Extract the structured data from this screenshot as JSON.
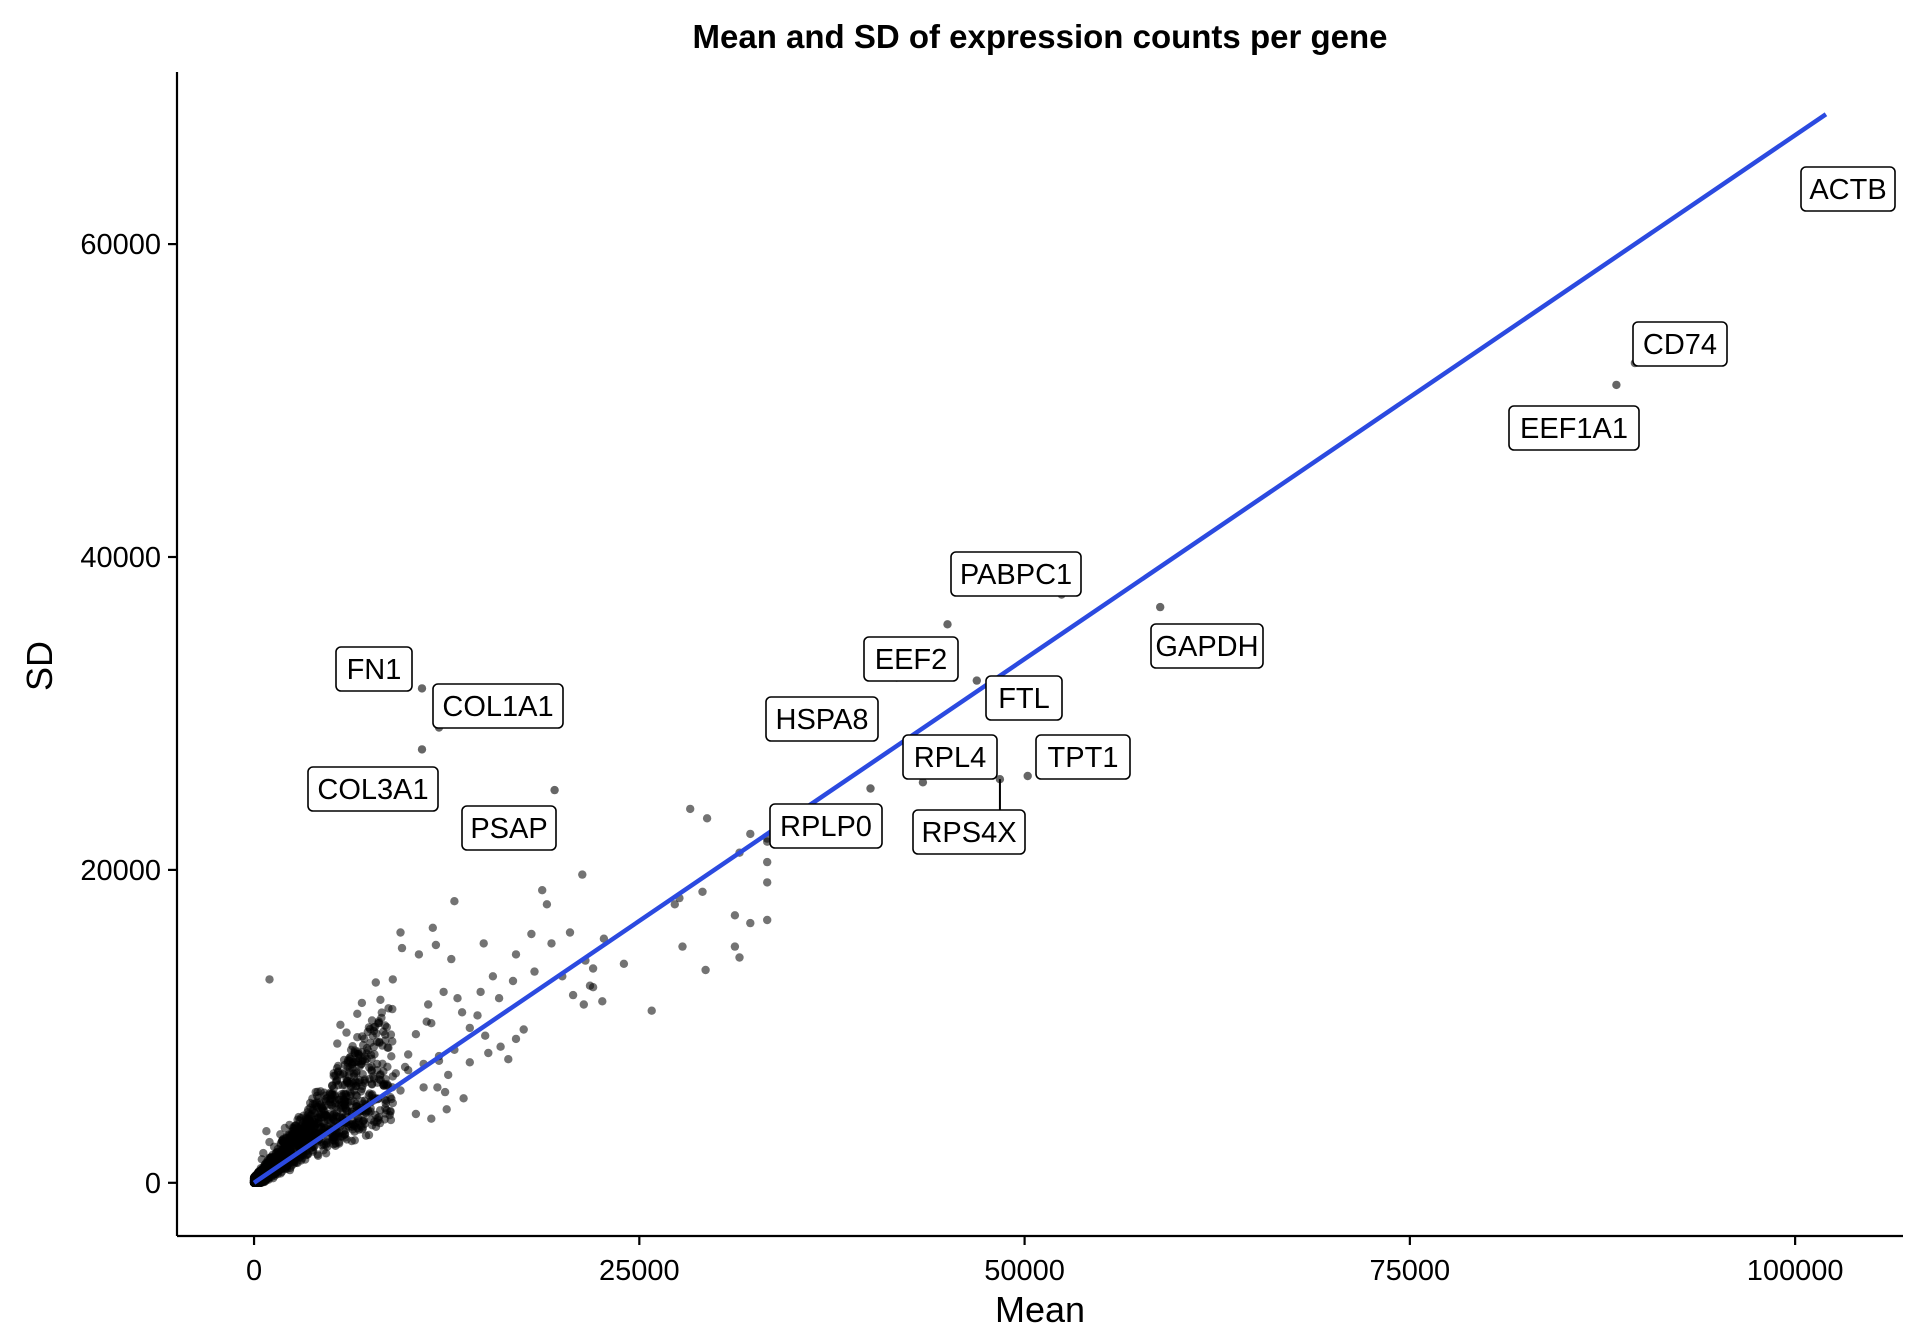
{
  "chart_data": {
    "type": "scatter",
    "title": "Mean and SD of expression counts per gene",
    "xlabel": "Mean",
    "ylabel": "SD",
    "xlim": [
      -5000,
      107000
    ],
    "ylim": [
      -3400,
      71000
    ],
    "x_ticks": [
      "0",
      "25000",
      "50000",
      "75000",
      "100000"
    ],
    "y_ticks": [
      "0",
      "20000",
      "40000",
      "60000"
    ],
    "grid": false,
    "colors": {
      "points": "#000000",
      "trend": "#2b4ae0",
      "label_border": "#000000"
    },
    "trend_line": {
      "x": [
        0,
        102000
      ],
      "y": [
        0,
        68300
      ]
    },
    "labeled_genes": [
      {
        "label": "ACTB",
        "x": 102100,
        "y": 62500
      },
      {
        "label": "CD74",
        "x": 89600,
        "y": 52400
      },
      {
        "label": "EEF1A1",
        "x": 88400,
        "y": 51000
      },
      {
        "label": "PABPC1",
        "x": 52400,
        "y": 37600
      },
      {
        "label": "GAPDH",
        "x": 58800,
        "y": 36800
      },
      {
        "label": "EEF2",
        "x": 41700,
        "y": 32300
      },
      {
        "label": "HSPA8",
        "x": 45000,
        "y": 35700
      },
      {
        "label": "FTL",
        "x": 46900,
        "y": 32100
      },
      {
        "label": "FN1",
        "x": 10900,
        "y": 31600
      },
      {
        "label": "COL1A1",
        "x": 12000,
        "y": 29100
      },
      {
        "label": "COL3A1",
        "x": 10900,
        "y": 27700
      },
      {
        "label": "PSAP",
        "x": 19500,
        "y": 25100
      },
      {
        "label": "RPL4",
        "x": 43400,
        "y": 25600
      },
      {
        "label": "TPT1",
        "x": 50200,
        "y": 26000
      },
      {
        "label": "RPS4X",
        "x": 48400,
        "y": 25800
      },
      {
        "label": "RPLP0",
        "x": 40000,
        "y": 25200
      }
    ],
    "other_points": {
      "x": [
        1000,
        33300,
        33300,
        33300,
        33300,
        28300,
        29400,
        31500,
        31200,
        32200,
        27300,
        27600,
        29100,
        27800,
        29300,
        31200,
        31500,
        32200,
        33300,
        25800,
        24000,
        22000,
        19300,
        21300,
        22700,
        22600,
        20000,
        20700,
        21400,
        22000,
        18700,
        19000,
        20500,
        21500,
        21800,
        18200,
        18000,
        17000,
        16800,
        15900,
        15500,
        14900,
        14700,
        13000,
        12800,
        11800,
        11600,
        12300,
        11300,
        11200,
        10700,
        9600,
        9500,
        9000,
        8200,
        7900,
        7700,
        7000,
        6700,
        6300,
        6000,
        5600,
        5400,
        13200,
        13500,
        14000,
        14500,
        15000,
        16000,
        17500,
        17000,
        16500,
        15200,
        14000,
        13000,
        12000,
        11000,
        10000,
        9000,
        8000,
        7000,
        6000,
        10500,
        11500,
        12600,
        12400,
        13600,
        11900,
        9800,
        9200,
        8700,
        7500,
        6500,
        5800,
        5200,
        4800,
        4500,
        4200,
        3900,
        3600,
        3300,
        3000,
        2700,
        2400,
        2100,
        1800,
        1500,
        1200,
        900,
        600,
        300,
        8500,
        9500,
        10500,
        11500,
        12500,
        7800,
        6800,
        5900,
        5100,
        4400,
        3800,
        3200,
        2600,
        2000,
        1400,
        800,
        400,
        7200,
        6300,
        5500,
        4700,
        4000,
        3400,
        2800,
        2200,
        1600,
        1100,
        700,
        350,
        150,
        12000,
        10000,
        8000,
        6000,
        4000,
        2000,
        3000,
        5000,
        7000,
        9000,
        11000,
        2500,
        3500,
        4500,
        5500,
        6500,
        1000,
        1700,
        2300,
        2900,
        600,
        1300,
        1900,
        500,
        800,
        250,
        450,
        700,
        950,
        1250,
        1550,
        1850,
        2150,
        2450,
        2750,
        3050,
        3350,
        3650,
        3950,
        4250,
        4550,
        4850,
        5150,
        5450,
        5750,
        6050,
        6350,
        6650,
        6950,
        7250,
        7550,
        100,
        200,
        300,
        400,
        500,
        600,
        700,
        800,
        900,
        1000
      ],
      "y": [
        13000,
        19200,
        20500,
        21800,
        16800,
        23900,
        23300,
        21100,
        17100,
        16600,
        17800,
        18200,
        18600,
        15100,
        13600,
        15100,
        14400,
        22300,
        22000,
        11000,
        14000,
        12500,
        15300,
        19700,
        15600,
        11600,
        13200,
        12000,
        11400,
        13700,
        18700,
        17800,
        16000,
        14200,
        12600,
        13500,
        15900,
        14600,
        12900,
        11800,
        13200,
        15300,
        12200,
        18000,
        14300,
        15200,
        16300,
        12200,
        11400,
        10300,
        14600,
        15000,
        16000,
        13000,
        11700,
        12800,
        9400,
        11500,
        10800,
        8500,
        9600,
        10100,
        8900,
        11800,
        10900,
        9900,
        10700,
        9400,
        8700,
        9800,
        9200,
        7900,
        8300,
        7700,
        8500,
        8100,
        7600,
        7200,
        6800,
        6400,
        6000,
        5500,
        9500,
        10200,
        6900,
        5800,
        5400,
        6100,
        7400,
        7000,
        6200,
        5700,
        5200,
        4800,
        4400,
        4000,
        3800,
        3500,
        3200,
        3000,
        2700,
        2400,
        2100,
        1900,
        1600,
        1300,
        1100,
        900,
        700,
        500,
        300,
        5300,
        5900,
        4400,
        4100,
        4700,
        3900,
        3400,
        3100,
        2700,
        2400,
        2100,
        1800,
        1500,
        1200,
        900,
        600,
        350,
        6400,
        5700,
        5000,
        4300,
        3700,
        3200,
        2700,
        2200,
        1700,
        1200,
        800,
        500,
        300,
        7800,
        8200,
        7200,
        6600,
        5800,
        3500,
        2000,
        3400,
        4600,
        5100,
        6100,
        3000,
        3800,
        4600,
        5300,
        5900,
        2600,
        3100,
        3700,
        4200,
        1900,
        2300,
        2800,
        1500,
        3300,
        200,
        400,
        600,
        800,
        1000,
        1200,
        1400,
        1600,
        1800,
        2000,
        2200,
        2400,
        2600,
        2800,
        3000,
        3200,
        3400,
        3600,
        3800,
        4000,
        4200,
        4400,
        4600,
        4800,
        5000,
        5200,
        150,
        300,
        500,
        650,
        800,
        1000,
        1150,
        1300,
        1450,
        1600
      ]
    }
  }
}
